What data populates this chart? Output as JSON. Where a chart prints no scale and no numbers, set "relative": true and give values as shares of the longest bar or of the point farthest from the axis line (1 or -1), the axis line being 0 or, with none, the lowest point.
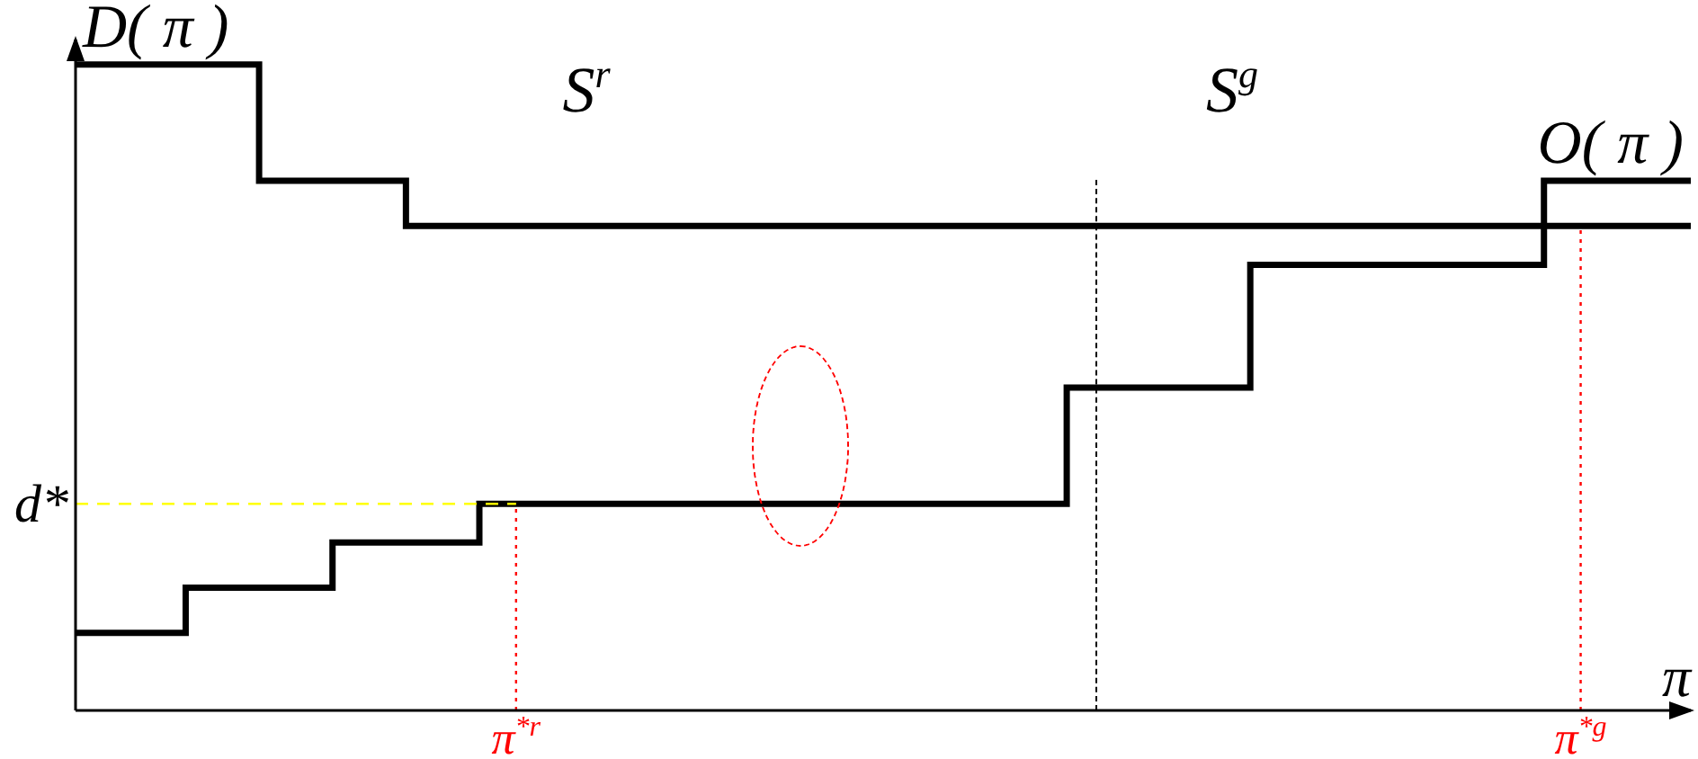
{
  "chart_data": {
    "type": "step",
    "relative": true,
    "xlabel": "π",
    "categories": [
      null,
      null,
      null,
      null,
      null,
      null,
      null,
      null,
      null,
      null,
      null,
      null,
      "π$^{*r}$",
      null,
      null,
      null,
      null,
      null,
      null,
      null,
      null,
      null,
      null,
      null,
      null,
      null,
      null,
      null,
      null,
      null,
      null,
      null,
      null,
      null,
      null,
      null,
      null,
      null,
      null,
      null,
      null,
      "π$^{*g}$",
      null,
      null,
      null
    ],
    "series": [
      {
        "name": "D( π )",
        "color": "#000000",
        "values": [
          1,
          1,
          1,
          1,
          1,
          1,
          0.82,
          0.82,
          0.82,
          0.82,
          0.75,
          0.75,
          0.75,
          0.75,
          0.75,
          0.75,
          0.75,
          0.75,
          0.75,
          0.75,
          0.75,
          0.75,
          0.75,
          0.75,
          0.75,
          0.75,
          0.75,
          0.75,
          0.75,
          0.75,
          0.75,
          0.75,
          0.75,
          0.75,
          0.75,
          0.75,
          0.75,
          0.75,
          0.75,
          0.75,
          0.75,
          0.75,
          0.75,
          0.75,
          0.75
        ]
      },
      {
        "name": "O( π )",
        "color": "#000000",
        "values": [
          0.12,
          0.12,
          0.12,
          0.12,
          0.19,
          0.19,
          0.19,
          0.19,
          0.26,
          0.26,
          0.26,
          0.26,
          0.32,
          0.32,
          0.32,
          0.32,
          0.32,
          0.32,
          0.32,
          0.32,
          0.32,
          0.32,
          0.32,
          0.32,
          0.32,
          0.32,
          0.32,
          0.32,
          0.5,
          0.5,
          0.5,
          0.5,
          0.5,
          0.69,
          0.69,
          0.69,
          0.69,
          0.69,
          0.69,
          0.69,
          0.69,
          0.82,
          0.82,
          0.82,
          0.82
        ]
      }
    ],
    "ref_lines": [
      {
        "axis": "x",
        "value": "π$^{*r}$",
        "color": "#ff0000",
        "line_style": "dotted"
      },
      {
        "axis": "x",
        "value": "π$^{*g}$",
        "color": "#ff0000",
        "line_style": "dotted"
      },
      {
        "axis": "y",
        "value": 0.32,
        "label": "d*",
        "color": "#ffff00",
        "line_style": "dashed"
      }
    ],
    "annotations": [
      "S$^{r}$",
      "S$^{g}$"
    ]
  }
}
